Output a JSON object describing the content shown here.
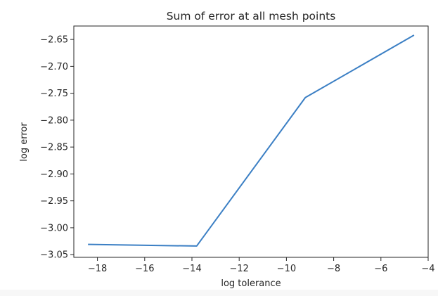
{
  "chart_data": {
    "type": "line",
    "title": "Sum of error at all mesh points",
    "xlabel": "log tolerance",
    "ylabel": "log error",
    "xlim": [
      -19.0,
      -4.0
    ],
    "ylim": [
      -3.055,
      -2.625
    ],
    "xticks": [
      -18,
      -16,
      -14,
      -12,
      -10,
      -8,
      -6,
      -4
    ],
    "xtick_labels": [
      "−18",
      "−16",
      "−14",
      "−12",
      "−10",
      "−8",
      "−6",
      "−4"
    ],
    "yticks": [
      -3.05,
      -3.0,
      -2.95,
      -2.9,
      -2.85,
      -2.8,
      -2.75,
      -2.7,
      -2.65
    ],
    "ytick_labels": [
      "−3.05",
      "−3.00",
      "−2.95",
      "−2.90",
      "−2.85",
      "−2.80",
      "−2.75",
      "−2.70",
      "−2.65"
    ],
    "grid": false,
    "series": [
      {
        "color": "#3b7fc4",
        "x": [
          -18.4,
          -13.8,
          -9.2,
          -4.6
        ],
        "y": [
          -3.031,
          -3.034,
          -2.758,
          -2.642
        ]
      }
    ]
  }
}
